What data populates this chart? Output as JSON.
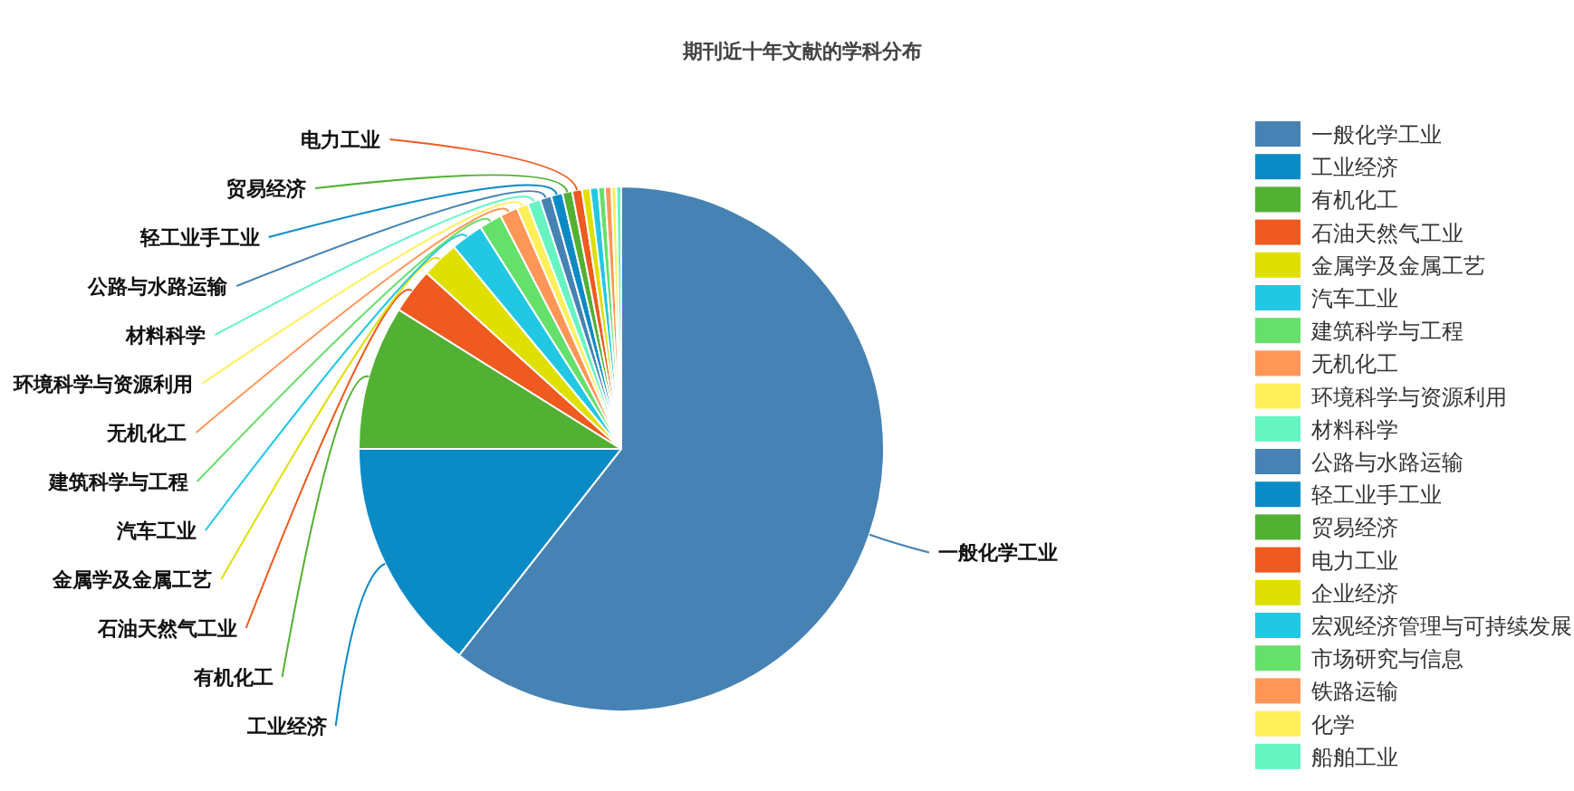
{
  "chart_data": {
    "type": "pie",
    "title": "期刊近十年文献的学科分布",
    "legend": "right",
    "categories": [
      "一般化学工业",
      "工业经济",
      "有机化工",
      "石油天然气工业",
      "金属学及金属工艺",
      "汽车工业",
      "建筑科学与工程",
      "无机化工",
      "环境科学与资源利用",
      "材料科学",
      "公路与水路运输",
      "轻工业手工业",
      "贸易经济",
      "电力工业",
      "企业经济",
      "宏观经济管理与可持续发展",
      "市场研究与信息",
      "铁路运输",
      "化学",
      "船舶工业"
    ],
    "values": [
      60.6,
      14.4,
      8.9,
      2.8,
      2.3,
      2.0,
      1.4,
      1.1,
      0.7,
      0.8,
      0.7,
      0.7,
      0.6,
      0.6,
      0.5,
      0.5,
      0.4,
      0.4,
      0.3,
      0.3
    ],
    "colors": [
      "#4682b4",
      "#0b8bc6",
      "#52b033",
      "#ee5a1f",
      "#dfdf00",
      "#22c8e3",
      "#65e06a",
      "#ff9657",
      "#fff05a",
      "#66f5c2",
      "#4682b4",
      "#0b8bc6",
      "#52b033",
      "#ee5a1f",
      "#dfdf00",
      "#22c8e3",
      "#65e06a",
      "#ff9657",
      "#fff05a",
      "#66f5c2"
    ]
  }
}
